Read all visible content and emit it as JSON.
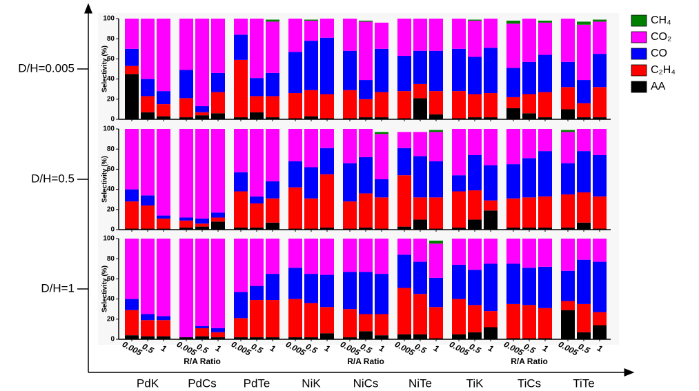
{
  "chart_data": {
    "type": "stacked-bar",
    "groups": [
      "PdK",
      "PdCs",
      "PdTe",
      "NiK",
      "NiCs",
      "NiTe",
      "TiK",
      "TiCs",
      "TiTe"
    ],
    "ratios": [
      "0.005",
      "0.5",
      "1"
    ],
    "x_label": "R/A Ratio",
    "y_label": "Selectivity (%)",
    "ylim": [
      0,
      100
    ],
    "yticks": [
      0,
      20,
      40,
      60,
      80,
      100
    ],
    "legend": "upper right",
    "series": [
      {
        "name": "AA",
        "color": "#000000"
      },
      {
        "name": "C₂H₄",
        "color": "#ff0000"
      },
      {
        "name": "CO",
        "color": "#0000ff"
      },
      {
        "name": "CO₂",
        "color": "#ff00ff"
      },
      {
        "name": "CH₄",
        "color": "#008000"
      }
    ],
    "panels": [
      {
        "label": "D/H=0.005",
        "values": [
          [
            45,
            7,
            3,
            2,
            4,
            6,
            2,
            7,
            2,
            1,
            3,
            1,
            1,
            2,
            2,
            1,
            21,
            5,
            1,
            2,
            2,
            11,
            6,
            2,
            10,
            2,
            2
          ],
          [
            8,
            16,
            12,
            19,
            3,
            21,
            57,
            16,
            21,
            25,
            26,
            24,
            28,
            18,
            25,
            27,
            14,
            23,
            27,
            23,
            24,
            11,
            19,
            25,
            22,
            14,
            30
          ],
          [
            17,
            17,
            13,
            28,
            6,
            19,
            25,
            18,
            23,
            41,
            49,
            56,
            39,
            19,
            43,
            35,
            33,
            40,
            42,
            37,
            45,
            29,
            32,
            37,
            25,
            23,
            33
          ],
          [
            30,
            60,
            72,
            51,
            87,
            54,
            16,
            59,
            51,
            33,
            20,
            19,
            32,
            58,
            26,
            37,
            32,
            32,
            30,
            36,
            29,
            44,
            43,
            32,
            43,
            55,
            32
          ],
          [
            0,
            0,
            0,
            0,
            0,
            0,
            0,
            0,
            2,
            0,
            1,
            0,
            0,
            1,
            0,
            0,
            0,
            0,
            0,
            1,
            0,
            3,
            0,
            2,
            0,
            3,
            2
          ]
        ]
      },
      {
        "label": "D/H=0.5",
        "values": [
          [
            1,
            1,
            1,
            2,
            3,
            8,
            2,
            2,
            7,
            1,
            1,
            2,
            1,
            2,
            1,
            3,
            10,
            1,
            2,
            10,
            19,
            2,
            2,
            2,
            2,
            7,
            1
          ],
          [
            27,
            23,
            10,
            7,
            3,
            4,
            36,
            24,
            24,
            41,
            30,
            53,
            27,
            34,
            31,
            51,
            22,
            31,
            36,
            29,
            10,
            29,
            30,
            31,
            33,
            30,
            32
          ],
          [
            12,
            10,
            3,
            3,
            5,
            5,
            19,
            7,
            17,
            26,
            31,
            26,
            38,
            36,
            18,
            27,
            41,
            36,
            16,
            35,
            35,
            34,
            39,
            45,
            31,
            41,
            41
          ],
          [
            60,
            66,
            86,
            88,
            89,
            83,
            43,
            67,
            52,
            32,
            38,
            19,
            34,
            28,
            45,
            16,
            24,
            29,
            46,
            26,
            36,
            35,
            29,
            22,
            31,
            22,
            26
          ],
          [
            0,
            0,
            0,
            0,
            0,
            0,
            0,
            0,
            0,
            0,
            0,
            0,
            0,
            0,
            2,
            0,
            0,
            2,
            0,
            0,
            0,
            0,
            0,
            0,
            2,
            0,
            0
          ]
        ]
      },
      {
        "label": "D/H=1",
        "values": [
          [
            4,
            3,
            3,
            2,
            3,
            2,
            2,
            2,
            2,
            2,
            2,
            6,
            2,
            8,
            4,
            5,
            5,
            1,
            5,
            7,
            12,
            1,
            1,
            1,
            29,
            7,
            14
          ],
          [
            25,
            16,
            16,
            0,
            8,
            5,
            19,
            37,
            37,
            38,
            34,
            26,
            28,
            17,
            21,
            46,
            40,
            31,
            35,
            27,
            16,
            34,
            33,
            30,
            9,
            28,
            13
          ],
          [
            11,
            6,
            4,
            0,
            2,
            4,
            26,
            14,
            26,
            31,
            29,
            32,
            37,
            42,
            40,
            33,
            32,
            29,
            34,
            35,
            47,
            40,
            37,
            41,
            30,
            44,
            50
          ],
          [
            60,
            75,
            77,
            98,
            87,
            89,
            53,
            47,
            35,
            29,
            35,
            36,
            33,
            33,
            35,
            16,
            23,
            34,
            26,
            31,
            25,
            25,
            29,
            28,
            32,
            21,
            23
          ],
          [
            0,
            0,
            0,
            0,
            0,
            0,
            0,
            0,
            0,
            0,
            0,
            0,
            0,
            0,
            0,
            0,
            0,
            3,
            0,
            0,
            0,
            0,
            0,
            0,
            0,
            0,
            0
          ]
        ]
      }
    ]
  }
}
